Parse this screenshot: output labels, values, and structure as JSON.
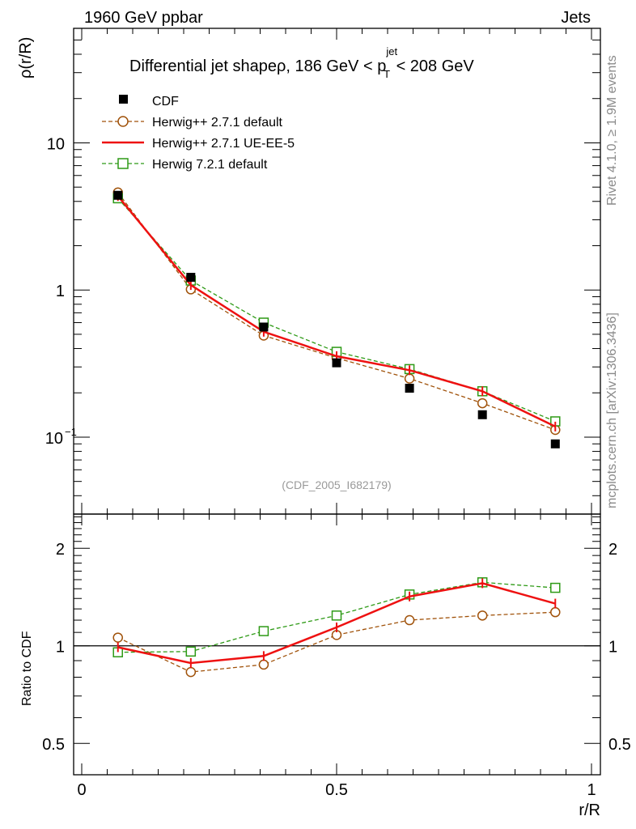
{
  "header": {
    "left": "1960 GeV ppbar",
    "right": "Jets"
  },
  "side_labels": {
    "rivet": "Rivet 4.1.0, ≥ 1.9M events",
    "mcplots": "mcplots.cern.ch [arXiv:1306.3436]"
  },
  "analysis_id": "(CDF_2005_I682179)",
  "title": {
    "prefix": "Differential jet shapeρ, 186 GeV < p",
    "sup": "jet",
    "sub": "T",
    "suffix": " < 208 GeV"
  },
  "axes": {
    "ylabel_top": "ρ(r/R)",
    "ylabel_bottom": "Ratio to CDF",
    "xlabel": "r/R"
  },
  "colors": {
    "cdf": "#000000",
    "herwig_271_default": "#a0520a",
    "herwig_271_ueee5": "#ee1111",
    "herwig_721_default": "#2e9a16"
  },
  "chart_data": [
    {
      "type": "scatter",
      "panel": "main",
      "yscale": "log",
      "xlim": [
        0,
        1
      ],
      "ylim": [
        0.03,
        60
      ],
      "x_ticks": [
        "0",
        "0.5",
        "1"
      ],
      "y_ticks": [
        {
          "value": 10,
          "label": "10",
          "exp": ""
        },
        {
          "value": 1,
          "label": "1",
          "exp": ""
        },
        {
          "value": 0.1,
          "label": "10",
          "exp": "−1"
        }
      ],
      "x": [
        0.071,
        0.214,
        0.357,
        0.5,
        0.643,
        0.786,
        0.929
      ],
      "series": [
        {
          "name": "CDF",
          "key": "cdf",
          "style": "marker-square",
          "values": [
            4.4,
            1.22,
            0.56,
            0.32,
            0.215,
            0.142,
            0.09
          ]
        },
        {
          "name": "Herwig++ 2.7.1 default",
          "key": "herwig_271_default",
          "style": "dashed-circle",
          "values": [
            4.6,
            1.01,
            0.49,
            0.345,
            0.25,
            0.17,
            0.112
          ]
        },
        {
          "name": "Herwig++ 2.7.1 UE-EE-5",
          "key": "herwig_271_ueee5",
          "style": "solid",
          "values": [
            4.35,
            1.08,
            0.52,
            0.355,
            0.285,
            0.205,
            0.118
          ]
        },
        {
          "name": "Herwig 7.2.1 default",
          "key": "herwig_721_default",
          "style": "dashed-square",
          "values": [
            4.2,
            1.16,
            0.6,
            0.38,
            0.29,
            0.205,
            0.128
          ]
        }
      ]
    },
    {
      "type": "line",
      "panel": "ratio",
      "yscale": "log",
      "xlim": [
        0,
        1
      ],
      "ylim": [
        0.4,
        2.55
      ],
      "y_ticks": [
        {
          "value": 2,
          "label": "2"
        },
        {
          "value": 1,
          "label": "1"
        },
        {
          "value": 0.5,
          "label": "0.5"
        }
      ],
      "x": [
        0.071,
        0.214,
        0.357,
        0.5,
        0.643,
        0.786,
        0.929
      ],
      "series": [
        {
          "name": "Herwig++ 2.7.1 default",
          "key": "herwig_271_default",
          "style": "dashed-circle",
          "values": [
            1.06,
            0.83,
            0.875,
            1.08,
            1.2,
            1.24,
            1.27
          ]
        },
        {
          "name": "Herwig++ 2.7.1 UE-EE-5",
          "key": "herwig_271_ueee5",
          "style": "solid",
          "values": [
            0.99,
            0.885,
            0.93,
            1.14,
            1.42,
            1.56,
            1.35
          ]
        },
        {
          "name": "Herwig 7.2.1 default",
          "key": "herwig_721_default",
          "style": "dashed-square",
          "values": [
            0.955,
            0.96,
            1.11,
            1.24,
            1.44,
            1.57,
            1.51
          ]
        }
      ]
    }
  ]
}
